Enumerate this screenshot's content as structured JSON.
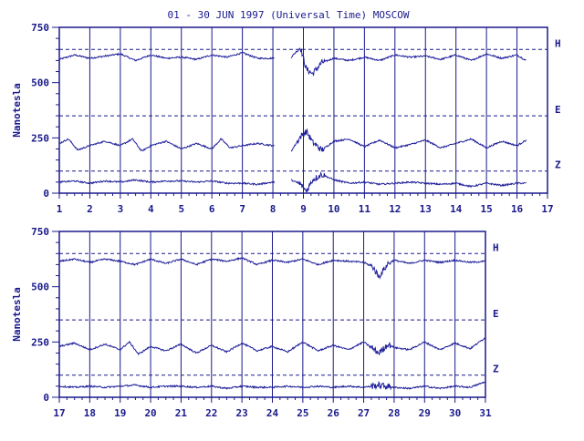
{
  "title": "01 - 30 JUN 1997 (Universal Time) MOSCOW",
  "colors": {
    "ink": "#1a1a8c",
    "trace": "#1f1f9a",
    "background": "#ffffff"
  },
  "chart_data": [
    {
      "type": "line",
      "ylabel": "Nanotesla",
      "xlim": [
        1,
        17
      ],
      "ylim": [
        0,
        750
      ],
      "x_ticks": [
        "1",
        "2",
        "3",
        "4",
        "5",
        "6",
        "7",
        "8",
        "9",
        "10",
        "11",
        "12",
        "13",
        "14",
        "15",
        "16",
        "17"
      ],
      "y_ticks": [
        "0",
        "250",
        "500",
        "750"
      ],
      "component_labels": [
        "H",
        "E",
        "Z"
      ],
      "reference_levels": [
        650,
        350,
        100
      ],
      "data_gap": [
        8.05,
        8.6
      ],
      "data_end": 16.3,
      "series": [
        {
          "name": "H",
          "x": [
            1,
            1.5,
            2,
            2.5,
            3,
            3.5,
            4,
            4.5,
            5,
            5.5,
            6,
            6.5,
            7,
            7.5,
            8,
            8.6,
            8.9,
            9.1,
            9.3,
            9.6,
            10,
            10.5,
            11,
            11.5,
            12,
            12.5,
            13,
            13.5,
            14,
            14.5,
            15,
            15.5,
            16,
            16.3
          ],
          "values": [
            605,
            625,
            610,
            620,
            630,
            600,
            625,
            610,
            615,
            605,
            625,
            615,
            635,
            610,
            610,
            615,
            660,
            560,
            540,
            590,
            610,
            600,
            615,
            600,
            625,
            615,
            620,
            605,
            625,
            600,
            630,
            610,
            625,
            600
          ]
        },
        {
          "name": "E",
          "x": [
            1,
            1.3,
            1.6,
            2,
            2.5,
            3,
            3.4,
            3.7,
            4,
            4.5,
            5,
            5.5,
            6,
            6.3,
            6.6,
            7,
            7.5,
            8,
            8.6,
            8.9,
            9.1,
            9.3,
            9.6,
            10,
            10.5,
            11,
            11.5,
            12,
            12.5,
            13,
            13.5,
            14,
            14.5,
            15,
            15.5,
            16,
            16.3
          ],
          "values": [
            225,
            245,
            195,
            215,
            235,
            215,
            245,
            190,
            215,
            235,
            200,
            225,
            200,
            245,
            205,
            215,
            225,
            215,
            190,
            255,
            280,
            230,
            195,
            235,
            245,
            210,
            240,
            205,
            220,
            240,
            205,
            225,
            245,
            205,
            235,
            215,
            240
          ]
        },
        {
          "name": "Z",
          "x": [
            1,
            1.5,
            2,
            2.5,
            3,
            3.5,
            4,
            4.5,
            5,
            5.5,
            6,
            6.5,
            7,
            7.5,
            8,
            8.6,
            8.9,
            9.1,
            9.3,
            9.6,
            10,
            10.5,
            11,
            11.5,
            12,
            12.5,
            13,
            13.5,
            14,
            14.5,
            15,
            15.5,
            16,
            16.3
          ],
          "values": [
            50,
            55,
            45,
            55,
            50,
            60,
            50,
            55,
            55,
            50,
            55,
            45,
            45,
            40,
            50,
            60,
            40,
            10,
            60,
            85,
            60,
            45,
            50,
            40,
            45,
            50,
            45,
            40,
            45,
            30,
            45,
            35,
            45,
            45
          ]
        }
      ]
    },
    {
      "type": "line",
      "ylabel": "Nanotesla",
      "xlim": [
        17,
        31
      ],
      "ylim": [
        0,
        750
      ],
      "x_ticks": [
        "17",
        "18",
        "19",
        "20",
        "21",
        "22",
        "23",
        "24",
        "25",
        "26",
        "27",
        "28",
        "29",
        "30",
        "31"
      ],
      "y_ticks": [
        "0",
        "250",
        "500",
        "750"
      ],
      "component_labels": [
        "H",
        "E",
        "Z"
      ],
      "reference_levels": [
        650,
        350,
        100
      ],
      "data_gap": null,
      "data_end": 31,
      "series": [
        {
          "name": "H",
          "x": [
            17,
            17.5,
            18,
            18.5,
            19,
            19.5,
            20,
            20.5,
            21,
            21.5,
            22,
            22.5,
            23,
            23.5,
            24,
            24.5,
            25,
            25.5,
            26,
            26.5,
            27,
            27.3,
            27.5,
            27.8,
            28,
            28.5,
            29,
            29.5,
            30,
            30.5,
            31
          ],
          "values": [
            615,
            625,
            610,
            625,
            615,
            600,
            625,
            605,
            625,
            600,
            625,
            615,
            630,
            600,
            620,
            610,
            625,
            600,
            620,
            615,
            610,
            590,
            545,
            605,
            620,
            605,
            620,
            610,
            620,
            610,
            615
          ]
        },
        {
          "name": "E",
          "x": [
            17,
            17.5,
            18,
            18.5,
            19,
            19.3,
            19.6,
            20,
            20.5,
            21,
            21.5,
            22,
            22.5,
            23,
            23.5,
            24,
            24.5,
            25,
            25.5,
            26,
            26.5,
            27,
            27.5,
            27.8,
            28,
            28.5,
            29,
            29.5,
            30,
            30.5,
            31
          ],
          "values": [
            230,
            245,
            215,
            240,
            215,
            250,
            195,
            230,
            210,
            240,
            200,
            235,
            205,
            245,
            210,
            230,
            205,
            250,
            210,
            235,
            215,
            250,
            200,
            240,
            225,
            215,
            250,
            215,
            245,
            220,
            270
          ]
        },
        {
          "name": "Z",
          "x": [
            17,
            17.5,
            18,
            18.5,
            19,
            19.5,
            20,
            20.5,
            21,
            21.5,
            22,
            22.5,
            23,
            23.5,
            24,
            24.5,
            25,
            25.5,
            26,
            26.5,
            27,
            27.5,
            28,
            28.5,
            29,
            29.5,
            30,
            30.5,
            31
          ],
          "values": [
            50,
            45,
            50,
            45,
            50,
            55,
            45,
            50,
            50,
            45,
            50,
            40,
            50,
            45,
            45,
            50,
            45,
            50,
            45,
            50,
            45,
            55,
            45,
            40,
            50,
            40,
            50,
            45,
            70
          ]
        }
      ]
    }
  ]
}
